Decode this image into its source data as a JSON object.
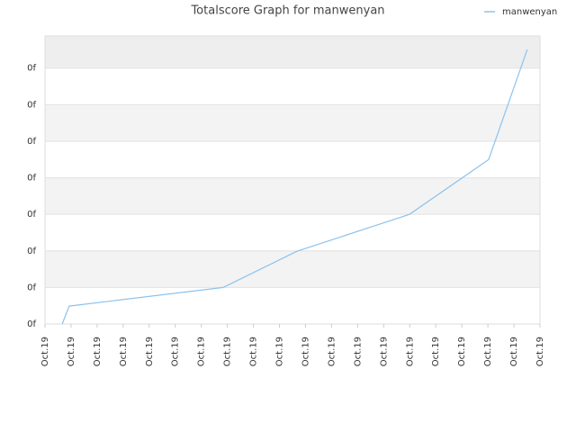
{
  "chart_data": {
    "type": "line",
    "title": "Totalscore Graph for manwenyan",
    "x": [
      0.66,
      0.93,
      6.84,
      9.67,
      13.99,
      17.03,
      18.51
    ],
    "series": [
      {
        "name": "manwenyan",
        "color": "#8cc3ee",
        "values": [
          0,
          0.49,
          1.0,
          1.99,
          3.0,
          4.5,
          7.51
        ]
      }
    ],
    "xlim": [
      0,
      19
    ],
    "xticks": [
      {
        "value": 0,
        "label": "Oct.19"
      },
      {
        "value": 1,
        "label": "Oct.19"
      },
      {
        "value": 2,
        "label": "Oct.19"
      },
      {
        "value": 3,
        "label": "Oct.19"
      },
      {
        "value": 4,
        "label": "Oct.19"
      },
      {
        "value": 5,
        "label": "Oct.19"
      },
      {
        "value": 6,
        "label": "Oct.19"
      },
      {
        "value": 7,
        "label": "Oct.19"
      },
      {
        "value": 8,
        "label": "Oct.19"
      },
      {
        "value": 9,
        "label": "Oct.19"
      },
      {
        "value": 10,
        "label": "Oct.19"
      },
      {
        "value": 11,
        "label": "Oct.19"
      },
      {
        "value": 12,
        "label": "Oct.19"
      },
      {
        "value": 13,
        "label": "Oct.19"
      },
      {
        "value": 14,
        "label": "Oct.19"
      },
      {
        "value": 15,
        "label": "Oct.19"
      },
      {
        "value": 16,
        "label": "Oct.19"
      },
      {
        "value": 17,
        "label": "Oct.19"
      },
      {
        "value": 18,
        "label": "Oct.19"
      },
      {
        "value": 19,
        "label": "Oct.19"
      }
    ],
    "ylim": [
      0,
      7.88
    ],
    "yticks": [
      {
        "value": 0,
        "label": "0f"
      },
      {
        "value": 1,
        "label": "0f"
      },
      {
        "value": 2,
        "label": "0f"
      },
      {
        "value": 3,
        "label": "0f"
      },
      {
        "value": 4,
        "label": "0f"
      },
      {
        "value": 5,
        "label": "0f"
      },
      {
        "value": 6,
        "label": "0f"
      },
      {
        "value": 7,
        "label": "0f"
      }
    ],
    "grid": true,
    "legend": "top-right"
  }
}
